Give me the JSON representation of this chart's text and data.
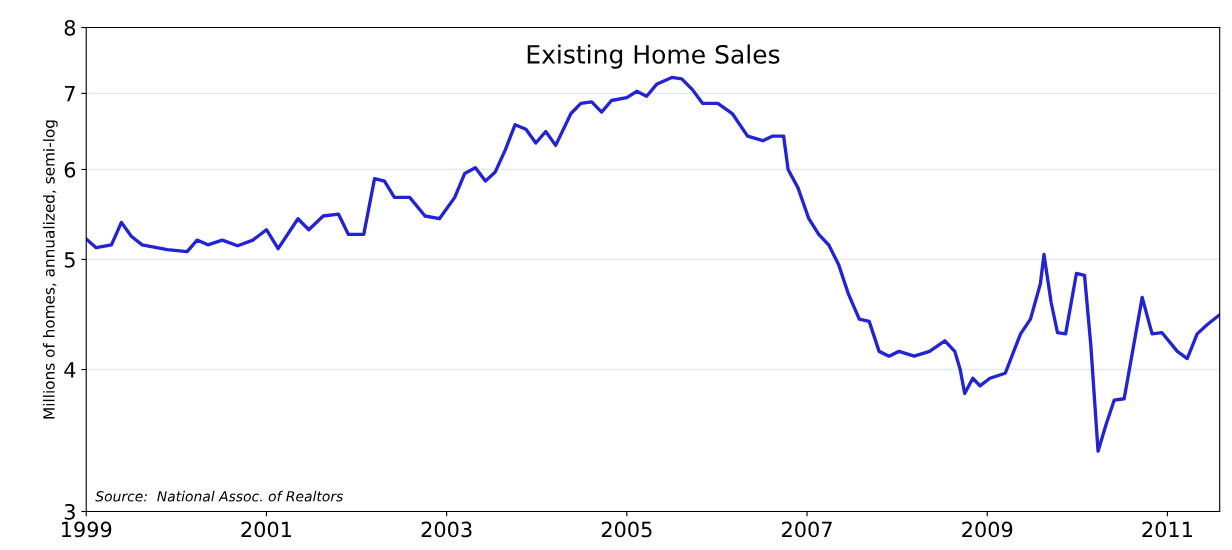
{
  "chart_data": {
    "type": "line",
    "title": "Existing Home Sales",
    "ylabel": "Millions of homes, annualized, semi-log",
    "annotations": [
      "Source:  National Assoc. of Realtors"
    ],
    "log": true,
    "grid": "y",
    "xlim": [
      1999,
      2011.58
    ],
    "xticks": [
      1999,
      2001,
      2003,
      2005,
      2007,
      2009,
      2011
    ],
    "ylim": [
      3,
      8
    ],
    "yticks": [
      3,
      4,
      5,
      6,
      7,
      8
    ],
    "x": [
      1999.0,
      1999.11,
      1999.28,
      1999.39,
      1999.5,
      1999.62,
      1999.9,
      2000.12,
      2000.23,
      2000.35,
      2000.51,
      2000.68,
      2000.85,
      2001.0,
      2001.13,
      2001.35,
      2001.47,
      2001.63,
      2001.8,
      2001.91,
      2002.08,
      2002.2,
      2002.31,
      2002.42,
      2002.59,
      2002.76,
      2002.92,
      2003.09,
      2003.2,
      2003.32,
      2003.43,
      2003.54,
      2003.65,
      2003.76,
      2003.88,
      2003.99,
      2004.1,
      2004.21,
      2004.38,
      2004.49,
      2004.61,
      2004.72,
      2004.83,
      2005.0,
      2005.11,
      2005.22,
      2005.33,
      2005.5,
      2005.61,
      2005.73,
      2005.84,
      2006.01,
      2006.17,
      2006.34,
      2006.51,
      2006.62,
      2006.74,
      2006.79,
      2006.9,
      2007.02,
      2007.13,
      2007.24,
      2007.35,
      2007.46,
      2007.58,
      2007.69,
      2007.8,
      2007.91,
      2008.02,
      2008.19,
      2008.36,
      2008.53,
      2008.64,
      2008.7,
      2008.75,
      2008.84,
      2008.92,
      2009.03,
      2009.2,
      2009.37,
      2009.48,
      2009.59,
      2009.63,
      2009.71,
      2009.78,
      2009.87,
      2009.99,
      2010.08,
      2010.15,
      2010.23,
      2010.32,
      2010.41,
      2010.52,
      2010.72,
      2010.83,
      2010.94,
      2011.11,
      2011.22,
      2011.33,
      2011.44,
      2011.58
    ],
    "series": [
      {
        "color": "#2323d6",
        "values": [
          5.21,
          5.12,
          5.15,
          5.39,
          5.24,
          5.15,
          5.1,
          5.08,
          5.2,
          5.15,
          5.2,
          5.14,
          5.2,
          5.31,
          5.11,
          5.43,
          5.31,
          5.46,
          5.48,
          5.26,
          5.26,
          5.89,
          5.86,
          5.67,
          5.67,
          5.46,
          5.43,
          5.67,
          5.95,
          6.02,
          5.86,
          5.97,
          6.24,
          6.57,
          6.51,
          6.33,
          6.48,
          6.3,
          6.72,
          6.86,
          6.88,
          6.74,
          6.9,
          6.94,
          7.03,
          6.96,
          7.13,
          7.23,
          7.21,
          7.05,
          6.86,
          6.86,
          6.72,
          6.42,
          6.36,
          6.42,
          6.42,
          6.0,
          5.78,
          5.43,
          5.26,
          5.15,
          4.95,
          4.66,
          4.43,
          4.41,
          4.15,
          4.11,
          4.15,
          4.11,
          4.15,
          4.24,
          4.15,
          4.0,
          3.81,
          3.93,
          3.87,
          3.93,
          3.97,
          4.3,
          4.43,
          4.76,
          5.05,
          4.58,
          4.31,
          4.3,
          4.86,
          4.84,
          4.2,
          3.39,
          3.58,
          3.76,
          3.77,
          4.63,
          4.3,
          4.31,
          4.15,
          4.09,
          4.3,
          4.38,
          4.47
        ]
      }
    ]
  }
}
